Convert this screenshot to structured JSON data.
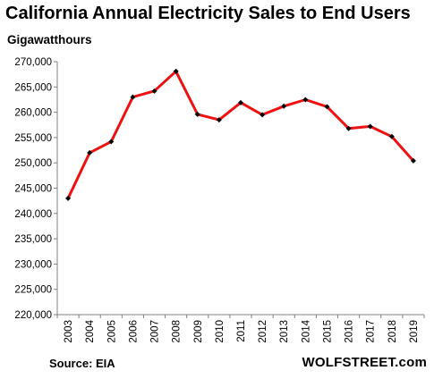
{
  "chart_data": {
    "type": "line",
    "title": "California Annual Electricity Sales to End Users",
    "ylabel": "Gigawatthours",
    "xlabel": "",
    "x": [
      "2003",
      "2004",
      "2005",
      "2006",
      "2007",
      "2008",
      "2009",
      "2010",
      "2011",
      "2012",
      "2013",
      "2014",
      "2015",
      "2016",
      "2017",
      "2018",
      "2019"
    ],
    "series": [
      {
        "values": [
          243000,
          252000,
          254200,
          263000,
          264200,
          268100,
          259600,
          258500,
          261900,
          259500,
          261200,
          262500,
          261100,
          256800,
          257200,
          255200,
          250400
        ],
        "color": "#ee1111",
        "marker_color": "#000000"
      }
    ],
    "ylim": [
      220000,
      270000
    ],
    "yticks": [
      "220,000",
      "225,000",
      "230,000",
      "235,000",
      "240,000",
      "245,000",
      "250,000",
      "255,000",
      "260,000",
      "265,000",
      "270,000"
    ],
    "grid": false,
    "legend": "none"
  },
  "footer": {
    "source": "Source: EIA",
    "credit": "WOLFSTREET.com"
  }
}
